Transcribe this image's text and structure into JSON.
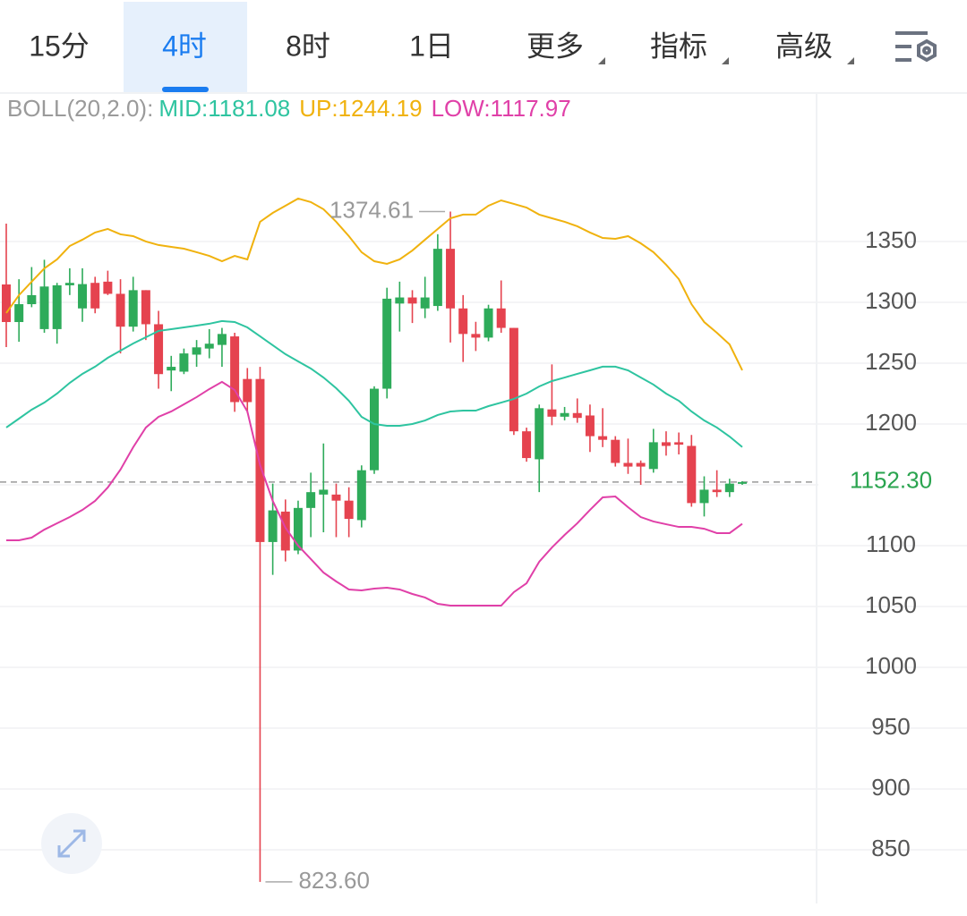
{
  "tabs": [
    "15分",
    "4时",
    "8时",
    "1日",
    "更多",
    "指标",
    "高级"
  ],
  "active_tab": 1,
  "chart_data": {
    "type": "candlestick",
    "indicator_label": "BOLL(20,2.0):",
    "up_color": "#2eab5a",
    "down_color": "#e5434f",
    "open": [
      1314.7,
      1283.8,
      1298.5,
      1278,
      1278,
      1314,
      1295,
      1316,
      1317,
      1307,
      1280,
      1310,
      1282,
      1244,
      1243,
      1257,
      1262,
      1265,
      1272,
      1237,
      1237,
      1103,
      1128,
      1096,
      1131,
      1142,
      1142,
      1137,
      1121,
      1162,
      1229,
      1299,
      1304,
      1295,
      1297,
      1344,
      1295,
      1274,
      1271,
      1295,
      1279,
      1194,
      1171,
      1212,
      1206,
      1209,
      1207,
      1190,
      1187,
      1168,
      1168,
      1163,
      1185,
      1185,
      1182,
      1135,
      1146,
      1144,
      1151
    ],
    "high": [
      1364.7,
      1319,
      1329,
      1335,
      1316,
      1328,
      1328,
      1321,
      1326,
      1319,
      1321,
      1310,
      1293,
      1256,
      1262,
      1269,
      1278,
      1279,
      1275,
      1246,
      1247,
      1151,
      1138,
      1137,
      1160,
      1184,
      1151,
      1148,
      1166,
      1231,
      1312,
      1317,
      1310,
      1321,
      1356,
      1374.61,
      1306,
      1284,
      1298,
      1318,
      1279,
      1197,
      1216,
      1249,
      1214,
      1221,
      1216,
      1213,
      1190,
      1188,
      1170,
      1196,
      1194,
      1193,
      1191,
      1157,
      1162,
      1155,
      1153
    ],
    "low": [
      1263.2,
      1267.6,
      1296,
      1275,
      1266,
      1306,
      1284,
      1291,
      1306,
      1258,
      1276,
      1269,
      1229,
      1227,
      1241,
      1247,
      1254,
      1247,
      1210,
      1209,
      823.6,
      1076,
      1087,
      1093,
      1107,
      1111,
      1107,
      1107,
      1115,
      1159,
      1221,
      1276,
      1283,
      1287,
      1293,
      1267,
      1251,
      1260,
      1268,
      1275,
      1191,
      1169,
      1144,
      1199,
      1203,
      1201,
      1177,
      1181,
      1165,
      1159,
      1150,
      1160,
      1174,
      1175,
      1132,
      1124,
      1140,
      1140,
      1150
    ],
    "close": [
      1283.8,
      1298.5,
      1305.9,
      1313,
      1314,
      1316,
      1315,
      1295,
      1307,
      1280,
      1310,
      1282,
      1241,
      1247,
      1258,
      1263,
      1266,
      1274,
      1218,
      1218,
      1103,
      1129,
      1096,
      1131,
      1144,
      1146,
      1137,
      1122,
      1162,
      1229,
      1303,
      1304,
      1299,
      1304,
      1344,
      1295,
      1274,
      1271,
      1295,
      1279,
      1194,
      1172,
      1213,
      1206,
      1209,
      1205,
      1190,
      1187,
      1168,
      1165,
      1165,
      1185,
      1182,
      1183,
      1135,
      1146,
      1144,
      1151,
      1152.3
    ],
    "series": [
      {
        "name": "MID",
        "legend_label": "MID:1181.08",
        "color": "#2ec4a0",
        "values": [
          1197.1,
          1204.4,
          1211.8,
          1217.6,
          1225,
          1233.8,
          1241.2,
          1247.1,
          1254.4,
          1260.3,
          1266.2,
          1271.3,
          1276.5,
          1277.9,
          1279.4,
          1280.9,
          1282.4,
          1284.6,
          1283.8,
          1279.4,
          1272.1,
          1264.7,
          1257.4,
          1251.5,
          1245.6,
          1238.2,
          1229.4,
          1219.1,
          1205.9,
          1200,
          1198.5,
          1198.5,
          1200,
          1202.9,
          1207.4,
          1210.3,
          1211,
          1211,
          1214.7,
          1217.6,
          1220.6,
          1225,
          1230.9,
          1235.3,
          1238.2,
          1241.2,
          1244.1,
          1247.1,
          1247.1,
          1244.1,
          1238.2,
          1232.4,
          1225,
          1219.1,
          1210.3,
          1202.9,
          1197.1,
          1189.7,
          1181.08
        ]
      },
      {
        "name": "UP",
        "legend_label": "UP:1244.19",
        "color": "#f0b20e",
        "values": [
          1291.2,
          1305.9,
          1316.9,
          1327.9,
          1335.3,
          1346.3,
          1351.5,
          1357.4,
          1360.3,
          1355.9,
          1354.4,
          1350,
          1347.1,
          1345.6,
          1344.1,
          1341.2,
          1338.2,
          1333.8,
          1338.2,
          1335.3,
          1366.2,
          1373.5,
          1379.4,
          1385.3,
          1382.4,
          1376.5,
          1366.2,
          1354.4,
          1341.2,
          1333.8,
          1331.6,
          1335.3,
          1342.6,
          1351.5,
          1360.3,
          1369.1,
          1372.1,
          1372.1,
          1379.4,
          1383.8,
          1380.9,
          1377.9,
          1372.1,
          1369.1,
          1366.2,
          1362.5,
          1357.4,
          1352.9,
          1352.2,
          1354.4,
          1348.5,
          1341.2,
          1330.9,
          1319.1,
          1298.5,
          1283.8,
          1275,
          1265.4,
          1244.19
        ]
      },
      {
        "name": "LOW",
        "legend_label": "LOW:1117.97",
        "color": "#e040a8",
        "values": [
          1104.4,
          1104.4,
          1106.6,
          1113.2,
          1118.4,
          1123.5,
          1129.4,
          1136.8,
          1147.8,
          1162.5,
          1180.9,
          1197.1,
          1205.9,
          1210.3,
          1216.2,
          1222.1,
          1228.7,
          1234.6,
          1227.9,
          1210.3,
          1166.2,
          1136.8,
          1114.7,
          1100,
          1089,
          1077.9,
          1070.6,
          1064,
          1063.2,
          1064.7,
          1065.4,
          1064,
          1060.3,
          1057.4,
          1052.2,
          1050.7,
          1050.7,
          1050.7,
          1050.7,
          1050.7,
          1061.8,
          1069.1,
          1086.8,
          1098.5,
          1108.8,
          1118.4,
          1129.4,
          1139.7,
          1140.4,
          1131.6,
          1123.5,
          1119.9,
          1117.6,
          1115.4,
          1115.4,
          1113.9,
          1110.3,
          1110.3,
          1117.97
        ]
      }
    ],
    "high_label": 1374.61,
    "low_label": {
      "value": 823.6,
      "label": "823.60"
    },
    "last_price": {
      "value": 1152.3,
      "label": "1152.30"
    },
    "last_price_color": "#2aa44f",
    "ylim": [
      805.9,
      1471.3
    ],
    "yticks": [
      850,
      900,
      950,
      1000,
      1050,
      1100,
      1150,
      1200,
      1250,
      1300,
      1350
    ],
    "ytick_labels_hidden": [
      1150
    ],
    "grid": true
  }
}
